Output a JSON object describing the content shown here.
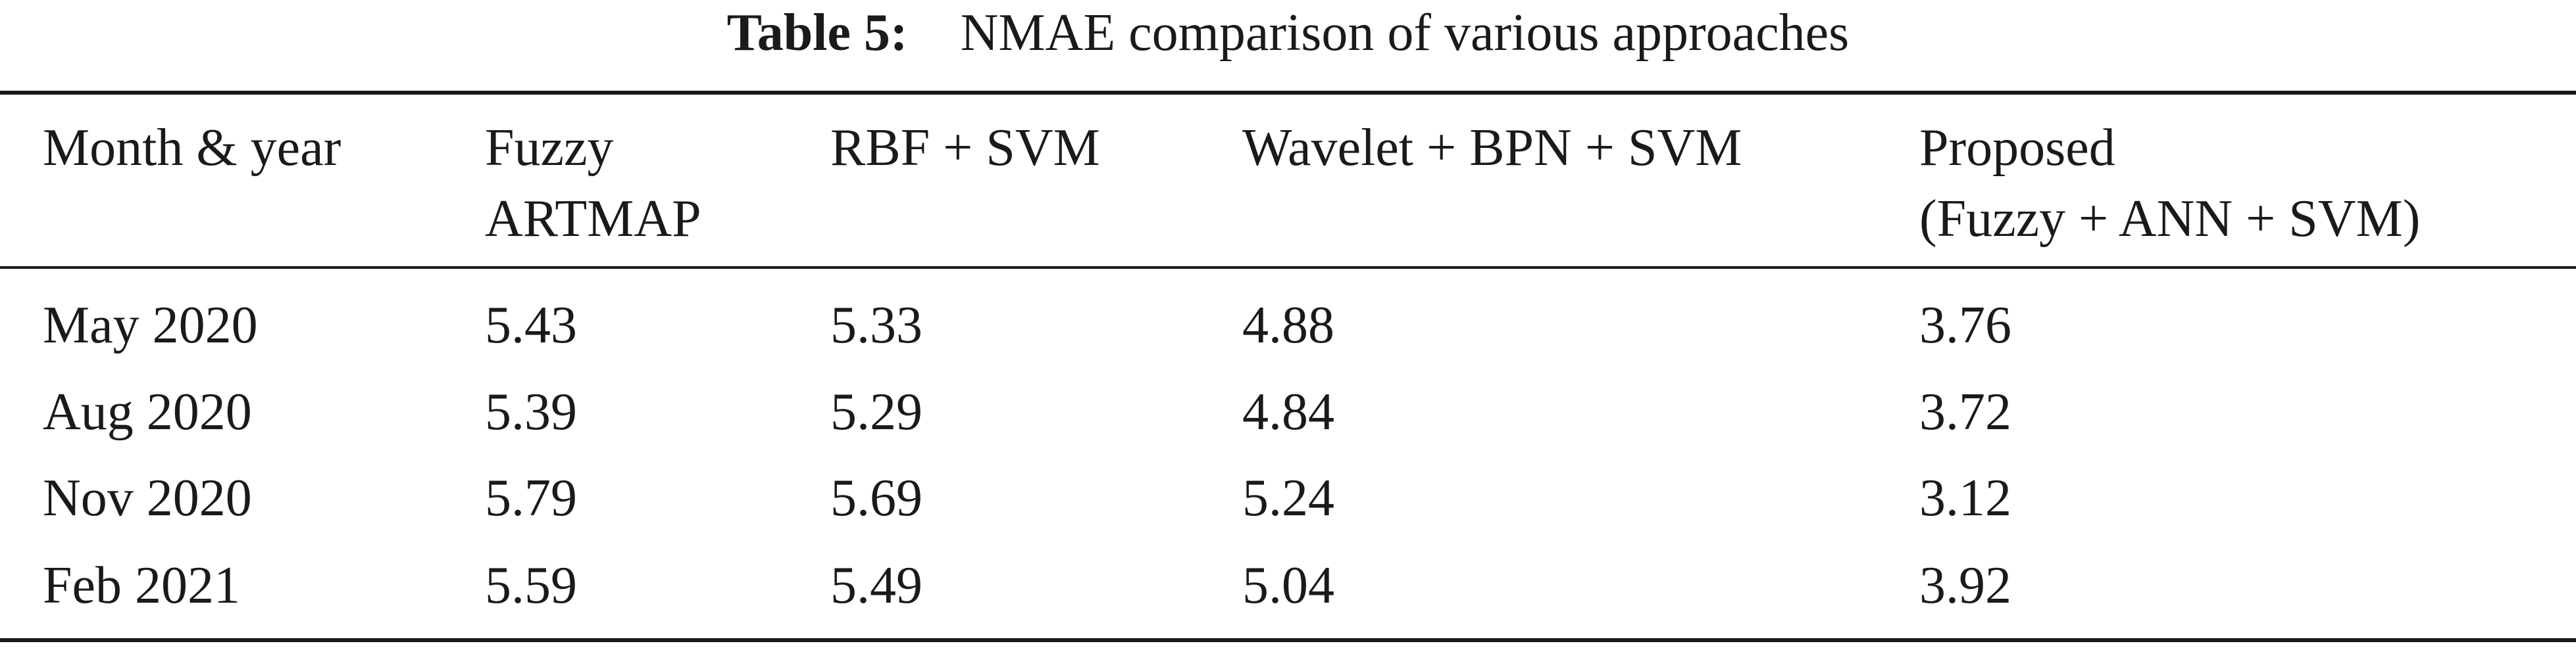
{
  "caption": {
    "label": "Table 5:",
    "text": "NMAE comparison of various approaches"
  },
  "header": {
    "col0": "Month & year",
    "col1_line1": "Fuzzy",
    "col1_line2": "ARTMAP",
    "col2": "RBF + SVM",
    "col3": "Wavelet + BPN + SVM",
    "col4_line1": "Proposed",
    "col4_line2": "(Fuzzy + ANN + SVM)"
  },
  "rows": [
    [
      "May 2020",
      "5.43",
      "5.33",
      "4.88",
      "3.76"
    ],
    [
      "Aug 2020",
      "5.39",
      "5.29",
      "4.84",
      "3.72"
    ],
    [
      "Nov 2020",
      "5.79",
      "5.69",
      "5.24",
      "3.12"
    ],
    [
      "Feb 2021",
      "5.59",
      "5.49",
      "5.04",
      "3.92"
    ]
  ]
}
